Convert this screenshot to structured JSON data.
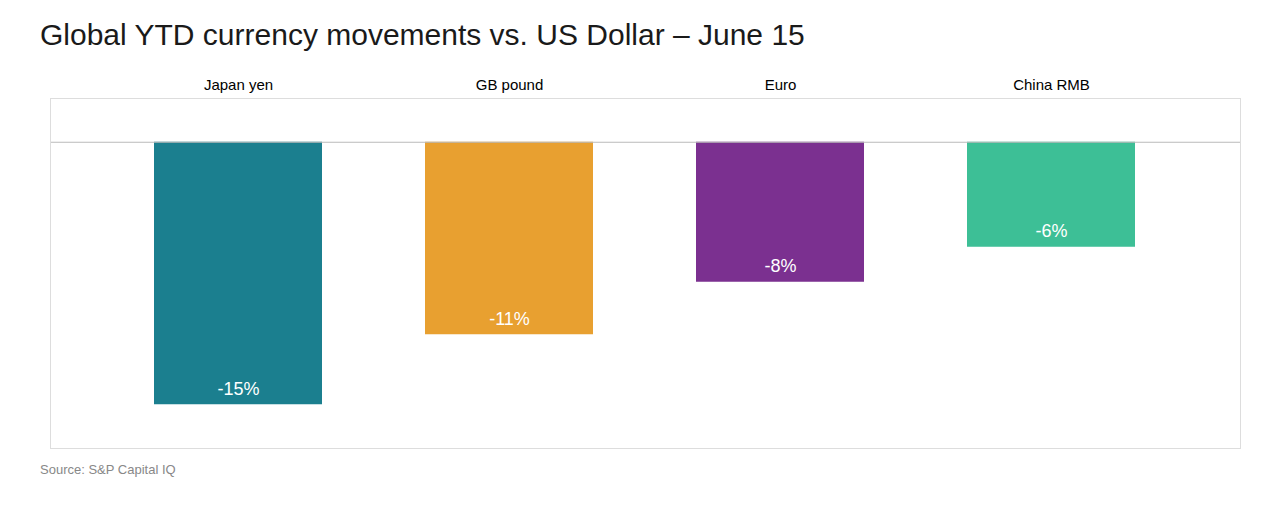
{
  "chart_data": {
    "type": "bar",
    "title": "Global YTD currency movements vs. US Dollar – June 15",
    "categories": [
      "Japan yen",
      "GB pound",
      "Euro",
      "China RMB"
    ],
    "values": [
      -15,
      -11,
      -8,
      -6
    ],
    "value_labels": [
      "-15%",
      "-11%",
      "-8%",
      "-6%"
    ],
    "colors": [
      "#1b7f8f",
      "#e8a030",
      "#7b3090",
      "#3dbf96"
    ],
    "ylim": [
      -17.5,
      2.5
    ],
    "grid": false,
    "data_labels": true,
    "tick_labels": "x",
    "annotations": [
      "Source: S&P Capital IQ"
    ]
  }
}
